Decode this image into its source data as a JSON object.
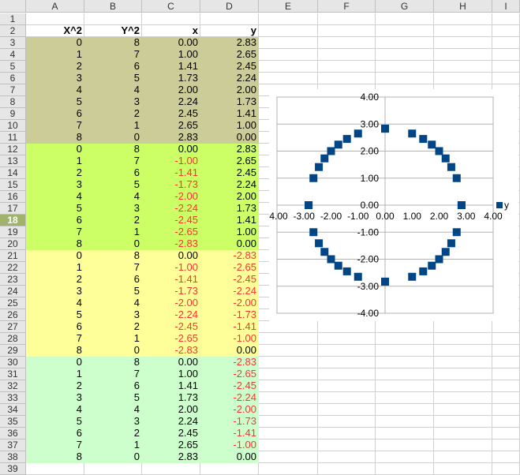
{
  "columns": [
    "A",
    "B",
    "C",
    "D",
    "E",
    "F",
    "G",
    "H",
    "I"
  ],
  "headers": {
    "row": 2,
    "values": [
      "X^2",
      "Y^2",
      "x",
      "y"
    ]
  },
  "selected_row": 18,
  "row_count": 39,
  "block_colors": [
    "#cccc99",
    "#ccff66",
    "#ffff99",
    "#ccffcc"
  ],
  "negative_color": "#ff3333",
  "rows": [
    [
      "0",
      "8",
      "0.00",
      "2.83"
    ],
    [
      "1",
      "7",
      "1.00",
      "2.65"
    ],
    [
      "2",
      "6",
      "1.41",
      "2.45"
    ],
    [
      "3",
      "5",
      "1.73",
      "2.24"
    ],
    [
      "4",
      "4",
      "2.00",
      "2.00"
    ],
    [
      "5",
      "3",
      "2.24",
      "1.73"
    ],
    [
      "6",
      "2",
      "2.45",
      "1.41"
    ],
    [
      "7",
      "1",
      "2.65",
      "1.00"
    ],
    [
      "8",
      "0",
      "2.83",
      "0.00"
    ],
    [
      "0",
      "8",
      "0.00",
      "2.83"
    ],
    [
      "1",
      "7",
      "-1.00",
      "2.65"
    ],
    [
      "2",
      "6",
      "-1.41",
      "2.45"
    ],
    [
      "3",
      "5",
      "-1.73",
      "2.24"
    ],
    [
      "4",
      "4",
      "-2.00",
      "2.00"
    ],
    [
      "5",
      "3",
      "-2.24",
      "1.73"
    ],
    [
      "6",
      "2",
      "-2.45",
      "1.41"
    ],
    [
      "7",
      "1",
      "-2.65",
      "1.00"
    ],
    [
      "8",
      "0",
      "-2.83",
      "0.00"
    ],
    [
      "0",
      "8",
      "0.00",
      "-2.83"
    ],
    [
      "1",
      "7",
      "-1.00",
      "-2.65"
    ],
    [
      "2",
      "6",
      "-1.41",
      "-2.45"
    ],
    [
      "3",
      "5",
      "-1.73",
      "-2.24"
    ],
    [
      "4",
      "4",
      "-2.00",
      "-2.00"
    ],
    [
      "5",
      "3",
      "-2.24",
      "-1.73"
    ],
    [
      "6",
      "2",
      "-2.45",
      "-1.41"
    ],
    [
      "7",
      "1",
      "-2.65",
      "-1.00"
    ],
    [
      "8",
      "0",
      "-2.83",
      "0.00"
    ],
    [
      "0",
      "8",
      "0.00",
      "-2.83"
    ],
    [
      "1",
      "7",
      "1.00",
      "-2.65"
    ],
    [
      "2",
      "6",
      "1.41",
      "-2.45"
    ],
    [
      "3",
      "5",
      "1.73",
      "-2.24"
    ],
    [
      "4",
      "4",
      "2.00",
      "-2.00"
    ],
    [
      "5",
      "3",
      "2.24",
      "-1.73"
    ],
    [
      "6",
      "2",
      "2.45",
      "-1.41"
    ],
    [
      "7",
      "1",
      "2.65",
      "-1.00"
    ],
    [
      "8",
      "0",
      "2.83",
      "0.00"
    ]
  ],
  "chart_data": {
    "type": "scatter",
    "series": [
      {
        "name": "y",
        "color": "#004586",
        "x": [
          0,
          1,
          1.41,
          1.73,
          2,
          2.24,
          2.45,
          2.65,
          2.83,
          0,
          -1,
          -1.41,
          -1.73,
          -2,
          -2.24,
          -2.45,
          -2.65,
          -2.83,
          0,
          -1,
          -1.41,
          -1.73,
          -2,
          -2.24,
          -2.45,
          -2.65,
          -2.83,
          0,
          1,
          1.41,
          1.73,
          2,
          2.24,
          2.45,
          2.65,
          2.83
        ],
        "y": [
          2.83,
          2.65,
          2.45,
          2.24,
          2,
          1.73,
          1.41,
          1,
          0,
          2.83,
          2.65,
          2.45,
          2.24,
          2,
          1.73,
          1.41,
          1,
          0,
          -2.83,
          -2.65,
          -2.45,
          -2.24,
          -2,
          -1.73,
          -1.41,
          -1,
          0,
          -2.83,
          -2.65,
          -2.45,
          -2.24,
          -2,
          -1.73,
          -1.41,
          -1,
          0
        ]
      }
    ],
    "xlim": [
      -4,
      4
    ],
    "ylim": [
      -4,
      4
    ],
    "xticks": [
      "-4.00",
      "-3.00",
      "-2.00",
      "-1.00",
      "0.00",
      "1.00",
      "2.00",
      "3.00",
      "4.00"
    ],
    "yticks": [
      "-4.00",
      "-3.00",
      "-2.00",
      "-1.00",
      "0.00",
      "1.00",
      "2.00",
      "3.00",
      "4.00"
    ],
    "grid": true,
    "legend": "right",
    "marker": "square"
  }
}
